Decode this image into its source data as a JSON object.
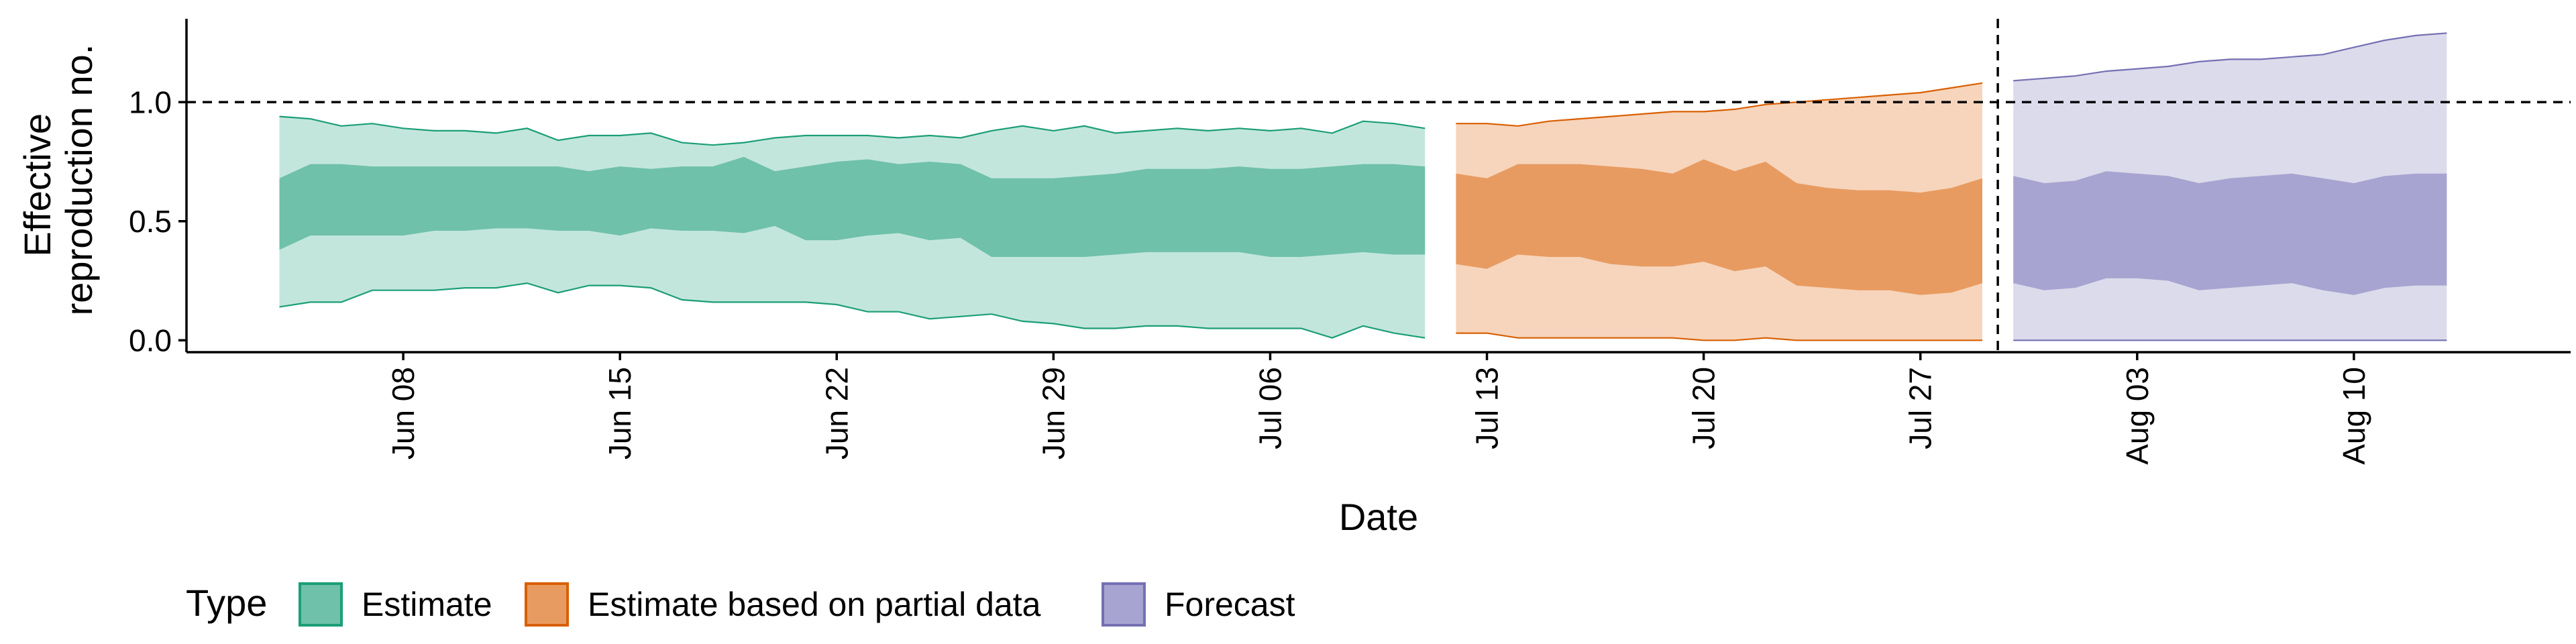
{
  "chart_data": {
    "type": "area",
    "xlabel": "Date",
    "ylabel": [
      "Effective",
      "reproduction no."
    ],
    "ylim": [
      -0.05,
      1.35
    ],
    "xlim": [
      "2020-06-01",
      "2020-08-17"
    ],
    "y_ticks": [
      0.0,
      0.5,
      1.0
    ],
    "y_tick_labels": [
      "0.0",
      "0.5",
      "1.0"
    ],
    "x_ticks": [
      "2020-06-08",
      "2020-06-15",
      "2020-06-22",
      "2020-06-29",
      "2020-07-06",
      "2020-07-13",
      "2020-07-20",
      "2020-07-27",
      "2020-08-03",
      "2020-08-10"
    ],
    "x_tick_labels": [
      "Jun 08",
      "Jun 15",
      "Jun 22",
      "Jun 29",
      "Jul 06",
      "Jul 13",
      "Jul 20",
      "Jul 27",
      "Aug 03",
      "Aug 10"
    ],
    "reference_hline": 1.0,
    "reference_vline": "2020-07-29",
    "grid": false,
    "legend": {
      "title": "Type",
      "position": "bottom-left",
      "entries": [
        "Estimate",
        "Estimate based on partial data",
        "Forecast"
      ]
    },
    "series": [
      {
        "name": "Estimate",
        "fill_outer": "#c3e6dc",
        "fill_inner": "#6fc1a9",
        "line": "#1b9e77",
        "x": [
          "2020-06-04",
          "2020-06-05",
          "2020-06-06",
          "2020-06-07",
          "2020-06-08",
          "2020-06-09",
          "2020-06-10",
          "2020-06-11",
          "2020-06-12",
          "2020-06-13",
          "2020-06-14",
          "2020-06-15",
          "2020-06-16",
          "2020-06-17",
          "2020-06-18",
          "2020-06-19",
          "2020-06-20",
          "2020-06-21",
          "2020-06-22",
          "2020-06-23",
          "2020-06-24",
          "2020-06-25",
          "2020-06-26",
          "2020-06-27",
          "2020-06-28",
          "2020-06-29",
          "2020-06-30",
          "2020-07-01",
          "2020-07-02",
          "2020-07-03",
          "2020-07-04",
          "2020-07-05",
          "2020-07-06",
          "2020-07-07",
          "2020-07-08",
          "2020-07-09",
          "2020-07-10",
          "2020-07-11"
        ],
        "upper90": [
          0.94,
          0.93,
          0.9,
          0.91,
          0.89,
          0.88,
          0.88,
          0.87,
          0.89,
          0.84,
          0.86,
          0.86,
          0.87,
          0.83,
          0.82,
          0.83,
          0.85,
          0.86,
          0.86,
          0.86,
          0.85,
          0.86,
          0.85,
          0.88,
          0.9,
          0.88,
          0.9,
          0.87,
          0.88,
          0.89,
          0.88,
          0.89,
          0.88,
          0.89,
          0.87,
          0.92,
          0.91,
          0.89
        ],
        "upper50": [
          0.68,
          0.74,
          0.74,
          0.73,
          0.73,
          0.73,
          0.73,
          0.73,
          0.73,
          0.73,
          0.71,
          0.73,
          0.72,
          0.73,
          0.73,
          0.77,
          0.71,
          0.73,
          0.75,
          0.76,
          0.74,
          0.75,
          0.74,
          0.68,
          0.68,
          0.68,
          0.69,
          0.7,
          0.72,
          0.72,
          0.72,
          0.73,
          0.72,
          0.72,
          0.73,
          0.74,
          0.74,
          0.73
        ],
        "lower50": [
          0.38,
          0.44,
          0.44,
          0.44,
          0.44,
          0.46,
          0.46,
          0.47,
          0.47,
          0.46,
          0.46,
          0.44,
          0.47,
          0.46,
          0.46,
          0.45,
          0.48,
          0.42,
          0.42,
          0.44,
          0.45,
          0.42,
          0.43,
          0.35,
          0.35,
          0.35,
          0.35,
          0.36,
          0.37,
          0.37,
          0.37,
          0.37,
          0.35,
          0.35,
          0.36,
          0.37,
          0.36,
          0.36
        ],
        "lower90": [
          0.14,
          0.16,
          0.16,
          0.21,
          0.21,
          0.21,
          0.22,
          0.22,
          0.24,
          0.2,
          0.23,
          0.23,
          0.22,
          0.17,
          0.16,
          0.16,
          0.16,
          0.16,
          0.15,
          0.12,
          0.12,
          0.09,
          0.1,
          0.11,
          0.08,
          0.07,
          0.05,
          0.05,
          0.06,
          0.06,
          0.05,
          0.05,
          0.05,
          0.05,
          0.01,
          0.06,
          0.03,
          0.01
        ]
      },
      {
        "name": "Estimate based on partial data",
        "fill_outer": "#f6d5bc",
        "fill_inner": "#e89b61",
        "line": "#d95f02",
        "x": [
          "2020-07-12",
          "2020-07-13",
          "2020-07-14",
          "2020-07-15",
          "2020-07-16",
          "2020-07-17",
          "2020-07-18",
          "2020-07-19",
          "2020-07-20",
          "2020-07-21",
          "2020-07-22",
          "2020-07-23",
          "2020-07-24",
          "2020-07-25",
          "2020-07-26",
          "2020-07-27",
          "2020-07-28",
          "2020-07-29"
        ],
        "upper90": [
          0.91,
          0.91,
          0.9,
          0.92,
          0.93,
          0.94,
          0.95,
          0.96,
          0.96,
          0.97,
          0.99,
          1.0,
          1.01,
          1.02,
          1.03,
          1.04,
          1.06,
          1.08
        ],
        "upper50": [
          0.7,
          0.68,
          0.74,
          0.74,
          0.74,
          0.73,
          0.72,
          0.7,
          0.76,
          0.71,
          0.75,
          0.66,
          0.64,
          0.63,
          0.63,
          0.62,
          0.64,
          0.68
        ],
        "lower50": [
          0.32,
          0.3,
          0.36,
          0.35,
          0.35,
          0.32,
          0.31,
          0.31,
          0.33,
          0.29,
          0.31,
          0.23,
          0.22,
          0.21,
          0.21,
          0.19,
          0.2,
          0.24
        ],
        "lower90": [
          0.03,
          0.03,
          0.01,
          0.01,
          0.01,
          0.01,
          0.01,
          0.01,
          0.0,
          0.0,
          0.01,
          0.0,
          0.0,
          0.0,
          0.0,
          0.0,
          0.0,
          0.0
        ]
      },
      {
        "name": "Forecast",
        "fill_outer": "#dcdbeb",
        "fill_inner": "#a8a4d1",
        "line": "#7570b3",
        "x": [
          "2020-07-30",
          "2020-07-31",
          "2020-08-01",
          "2020-08-02",
          "2020-08-03",
          "2020-08-04",
          "2020-08-05",
          "2020-08-06",
          "2020-08-07",
          "2020-08-08",
          "2020-08-09",
          "2020-08-10",
          "2020-08-11",
          "2020-08-12",
          "2020-08-13"
        ],
        "upper90": [
          1.09,
          1.1,
          1.11,
          1.13,
          1.14,
          1.15,
          1.17,
          1.18,
          1.18,
          1.19,
          1.2,
          1.23,
          1.26,
          1.28,
          1.29
        ],
        "upper50": [
          0.69,
          0.66,
          0.67,
          0.71,
          0.7,
          0.69,
          0.66,
          0.68,
          0.69,
          0.7,
          0.68,
          0.66,
          0.69,
          0.7,
          0.7
        ],
        "lower50": [
          0.24,
          0.21,
          0.22,
          0.26,
          0.26,
          0.25,
          0.21,
          0.22,
          0.23,
          0.24,
          0.21,
          0.19,
          0.22,
          0.23,
          0.23
        ],
        "lower90": [
          0.0,
          0.0,
          0.0,
          0.0,
          0.0,
          0.0,
          0.0,
          0.0,
          0.0,
          0.0,
          0.0,
          0.0,
          0.0,
          0.0,
          0.0
        ]
      }
    ]
  }
}
